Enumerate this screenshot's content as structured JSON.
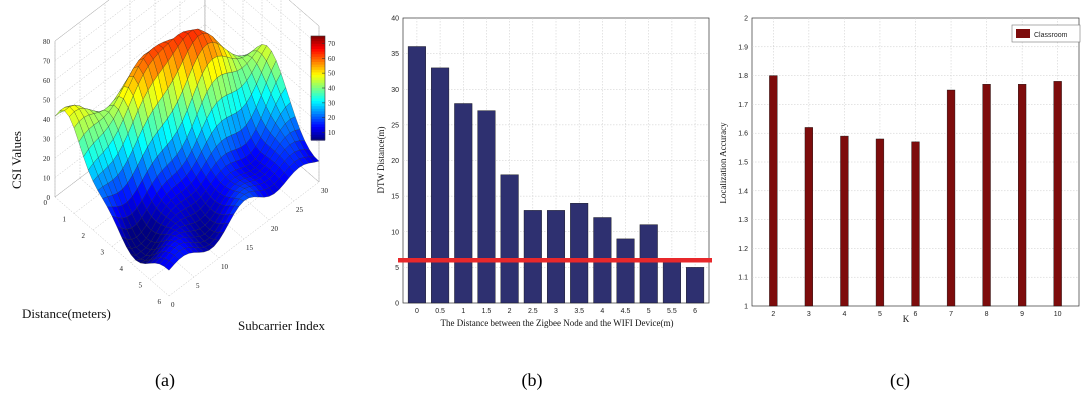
{
  "captions": [
    "(a)",
    "(b)",
    "(c)"
  ],
  "chart_data": [
    {
      "type": "surface",
      "xlabel": "Distance(meters)",
      "ylabel": "Subcarrier Index",
      "zlabel": "CSI Values",
      "x_ticks": [
        "0",
        "1",
        "2",
        "3",
        "4",
        "5",
        "6"
      ],
      "y_ticks": [
        "0",
        "5",
        "10",
        "15",
        "20",
        "25",
        "30"
      ],
      "z_ticks": [
        "0",
        "10",
        "20",
        "30",
        "40",
        "50",
        "60",
        "70",
        "80"
      ],
      "colorbar_ticks": [
        "10",
        "20",
        "30",
        "40",
        "50",
        "60",
        "70"
      ],
      "colorbar_range": [
        5,
        75
      ],
      "colormap": "jet"
    },
    {
      "type": "bar",
      "xlabel": "The Distance between the Zigbee Node and the WIFI Device(m)",
      "ylabel": "DTW Distance(m)",
      "categories": [
        "0",
        "0.5",
        "1",
        "1.5",
        "2",
        "2.5",
        "3",
        "3.5",
        "4",
        "4.5",
        "5",
        "5.5",
        "6"
      ],
      "values": [
        36,
        33,
        28,
        27,
        18,
        13,
        13,
        14,
        12,
        9,
        11,
        6,
        5
      ],
      "ylim": [
        0,
        40
      ],
      "yticks": [
        "0",
        "5",
        "10",
        "15",
        "20",
        "25",
        "30",
        "35",
        "40"
      ],
      "threshold": 6,
      "bar_color": "#2e3070",
      "threshold_color": "#e8282b",
      "grid": true
    },
    {
      "type": "bar",
      "xlabel": "K",
      "ylabel": "Localization Accuracy",
      "categories": [
        "2",
        "3",
        "4",
        "5",
        "6",
        "7",
        "8",
        "9",
        "10"
      ],
      "series": [
        {
          "name": "Classroom",
          "values": [
            1.8,
            1.62,
            1.59,
            1.58,
            1.57,
            1.75,
            1.77,
            1.77,
            1.78
          ]
        }
      ],
      "ylim": [
        1,
        2
      ],
      "yticks": [
        "1",
        "1.1",
        "1.2",
        "1.3",
        "1.4",
        "1.5",
        "1.6",
        "1.7",
        "1.8",
        "1.9",
        "2"
      ],
      "legend_position": "top-right",
      "bar_color": "#7d0c0c",
      "grid": true
    }
  ]
}
